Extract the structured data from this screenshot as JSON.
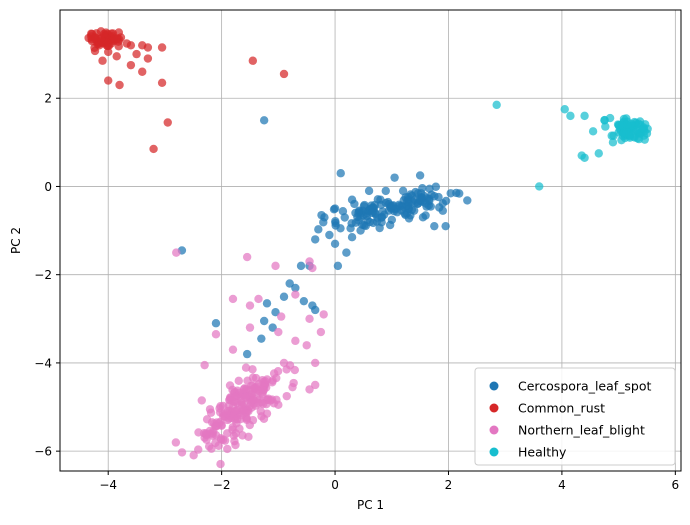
{
  "chart_data": {
    "type": "scatter",
    "title": "",
    "xlabel": "PC 1",
    "ylabel": "PC 2",
    "xlim": [
      -4.85,
      6.1
    ],
    "ylim": [
      -6.45,
      4.0
    ],
    "xticks": [
      -4,
      -2,
      0,
      2,
      4,
      6
    ],
    "yticks": [
      -6,
      -4,
      -2,
      0,
      2
    ],
    "x_tick_labels": [
      "−4",
      "−2",
      "0",
      "2",
      "4",
      "6"
    ],
    "y_tick_labels": [
      "−6",
      "−4",
      "−2",
      "0",
      "2"
    ],
    "grid": true,
    "legend_position": "lower-right",
    "series": [
      {
        "name": "Cercospora_leaf_spot",
        "color": "#1f77b4",
        "points": [
          [
            0.1,
            0.3
          ],
          [
            1.05,
            0.2
          ],
          [
            1.5,
            0.25
          ],
          [
            1.2,
            -0.1
          ],
          [
            0.3,
            -0.3
          ],
          [
            0.6,
            -0.1
          ],
          [
            0.0,
            -0.5
          ],
          [
            0.8,
            -0.3
          ],
          [
            0.45,
            -0.7
          ],
          [
            1.9,
            -0.55
          ],
          [
            1.75,
            -0.9
          ],
          [
            1.95,
            -0.9
          ],
          [
            0.0,
            -1.3
          ],
          [
            -0.1,
            -1.1
          ],
          [
            -0.35,
            -1.2
          ],
          [
            -0.6,
            -1.8
          ],
          [
            -0.45,
            -1.8
          ],
          [
            0.05,
            -1.8
          ],
          [
            -0.8,
            -2.2
          ],
          [
            -0.7,
            -2.3
          ],
          [
            -0.9,
            -2.5
          ],
          [
            -1.2,
            -2.65
          ],
          [
            -0.55,
            -2.6
          ],
          [
            -0.35,
            -2.8
          ],
          [
            -1.05,
            -2.85
          ],
          [
            -1.25,
            -3.05
          ],
          [
            -1.1,
            -3.2
          ],
          [
            -1.3,
            -3.45
          ],
          [
            -2.7,
            -1.45
          ],
          [
            -1.25,
            1.5
          ],
          [
            -2.1,
            -3.1
          ],
          [
            -1.55,
            -3.8
          ],
          [
            -0.4,
            -2.7
          ],
          [
            0.2,
            -1.5
          ],
          [
            0.3,
            -1.15
          ],
          [
            0.45,
            -1.0
          ],
          [
            0.65,
            -0.6
          ],
          [
            0.95,
            -0.4
          ],
          [
            1.3,
            -0.5
          ],
          [
            1.55,
            -0.7
          ]
        ],
        "cluster": {
          "center": [
            1.0,
            -0.5
          ],
          "spread": [
            0.5,
            0.3
          ],
          "count": 130
        }
      },
      {
        "name": "Common_rust",
        "color": "#d62728",
        "points": [
          [
            -4.3,
            3.4
          ],
          [
            -3.9,
            3.35
          ],
          [
            -3.6,
            3.2
          ],
          [
            -3.4,
            3.2
          ],
          [
            -3.3,
            3.15
          ],
          [
            -3.05,
            3.15
          ],
          [
            -3.5,
            3.0
          ],
          [
            -3.3,
            2.9
          ],
          [
            -3.6,
            2.75
          ],
          [
            -3.4,
            2.6
          ],
          [
            -3.8,
            2.3
          ],
          [
            -4.0,
            2.4
          ],
          [
            -3.05,
            2.35
          ],
          [
            -1.45,
            2.85
          ],
          [
            -0.9,
            2.55
          ],
          [
            -2.95,
            1.45
          ],
          [
            -3.2,
            0.85
          ],
          [
            -4.1,
            2.85
          ],
          [
            -4.0,
            3.05
          ],
          [
            -3.85,
            2.95
          ]
        ],
        "cluster": {
          "center": [
            -4.05,
            3.3
          ],
          "spread": [
            0.15,
            0.12
          ],
          "count": 55
        }
      },
      {
        "name": "Northern_leaf_blight",
        "color": "#e377c2",
        "points": [
          [
            -2.8,
            -1.5
          ],
          [
            -1.55,
            -1.6
          ],
          [
            -0.45,
            -1.7
          ],
          [
            -0.4,
            -1.85
          ],
          [
            -1.05,
            -1.8
          ],
          [
            -0.7,
            -2.45
          ],
          [
            -0.95,
            -2.95
          ],
          [
            -1.35,
            -2.55
          ],
          [
            -1.5,
            -2.7
          ],
          [
            -1.8,
            -2.55
          ],
          [
            -0.45,
            -3.0
          ],
          [
            -0.2,
            -2.9
          ],
          [
            -1.5,
            -3.2
          ],
          [
            -2.3,
            -4.05
          ],
          [
            -2.1,
            -3.35
          ],
          [
            -0.25,
            -3.3
          ],
          [
            -0.7,
            -3.5
          ],
          [
            -0.5,
            -3.6
          ],
          [
            -0.35,
            -4.0
          ],
          [
            -0.45,
            -4.6
          ],
          [
            -0.75,
            -4.55
          ],
          [
            -0.35,
            -4.5
          ],
          [
            -1.0,
            -3.3
          ],
          [
            -2.35,
            -4.85
          ],
          [
            -1.2,
            -5.15
          ],
          [
            -1.0,
            -4.95
          ],
          [
            -1.9,
            -5.95
          ],
          [
            -0.9,
            -4.0
          ],
          [
            -1.1,
            -4.4
          ],
          [
            -1.8,
            -3.7
          ]
        ],
        "cluster": {
          "center": [
            -1.65,
            -5.0
          ],
          "spread": [
            0.33,
            0.55
          ],
          "count": 190
        }
      },
      {
        "name": "Healthy",
        "color": "#17becf",
        "points": [
          [
            2.85,
            1.85
          ],
          [
            3.6,
            0.0
          ],
          [
            4.05,
            1.75
          ],
          [
            4.15,
            1.6
          ],
          [
            4.4,
            1.6
          ],
          [
            4.35,
            0.7
          ],
          [
            4.4,
            0.65
          ],
          [
            4.55,
            1.25
          ],
          [
            4.75,
            1.5
          ],
          [
            4.65,
            0.75
          ],
          [
            4.85,
            1.55
          ],
          [
            4.9,
            1.0
          ],
          [
            5.05,
            1.05
          ],
          [
            5.5,
            1.2
          ]
        ],
        "cluster": {
          "center": [
            5.2,
            1.3
          ],
          "spread": [
            0.18,
            0.12
          ],
          "count": 65
        }
      }
    ]
  }
}
